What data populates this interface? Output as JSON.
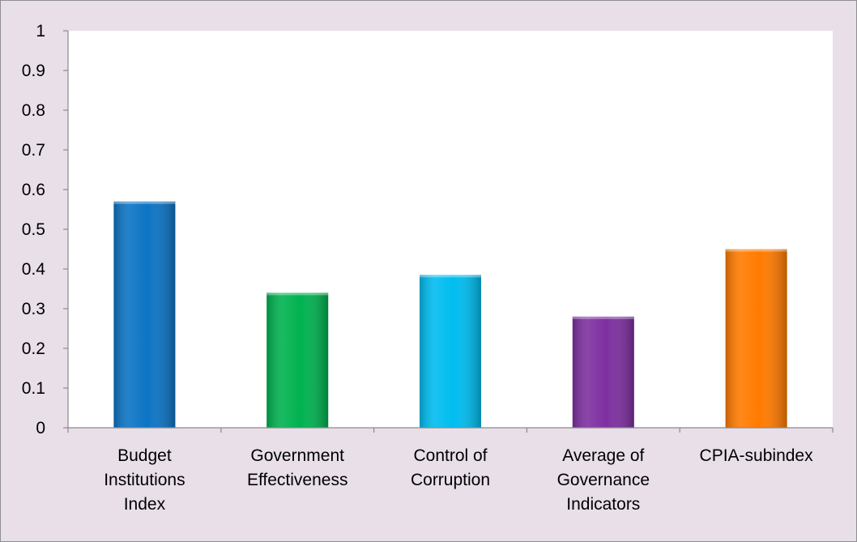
{
  "chart_data": {
    "type": "bar",
    "title": "",
    "xlabel": "",
    "ylabel": "",
    "categories": [
      [
        "Budget",
        "Institutions",
        "Index"
      ],
      [
        "Government",
        "Effectiveness"
      ],
      [
        "Control of",
        "Corruption"
      ],
      [
        "Average of",
        "Governance",
        "Indicators"
      ],
      [
        "CPIA-subindex"
      ]
    ],
    "values": [
      0.57,
      0.34,
      0.385,
      0.28,
      0.45
    ],
    "bar_colors": [
      "#0c74c4",
      "#00b250",
      "#00bdf0",
      "#7e2fa0",
      "#ff7b00"
    ],
    "ylim": [
      0,
      1
    ],
    "yticks": [
      "0",
      "0.1",
      "0.2",
      "0.3",
      "0.4",
      "0.5",
      "0.6",
      "0.7",
      "0.8",
      "0.9",
      "1"
    ],
    "grid": false,
    "legend": "none"
  }
}
